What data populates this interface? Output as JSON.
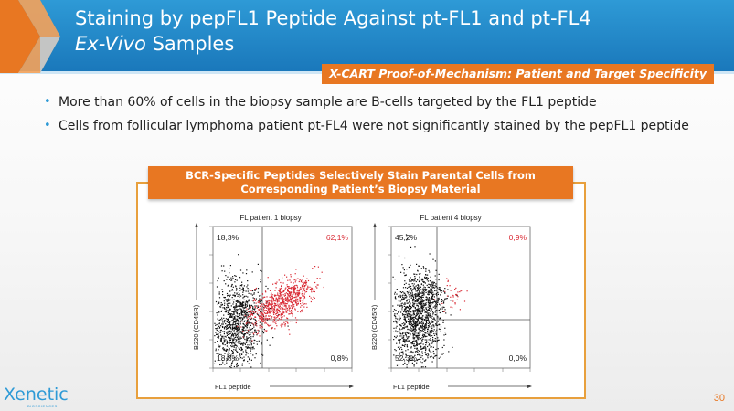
{
  "header": {
    "title_line1": "Staining by pepFL1 Peptide Against pt-FL1 and pt-FL4",
    "title_line2_italic": "Ex-Vivo",
    "title_line2_rest": " Samples",
    "subtitle": "X-CART Proof-of-Mechanism: Patient and Target Specificity"
  },
  "bullets": [
    "More than 60% of cells in the biopsy sample are B-cells targeted by the FL1 peptide",
    "Cells from follicular lymphoma patient pt-FL4 were not significantly stained by the pepFL1 peptide"
  ],
  "figure": {
    "panel_title_line1": "BCR-Specific Peptides Selectively Stain Parental Cells from",
    "panel_title_line2": "Corresponding Patient’s Biopsy Material"
  },
  "chart_data": [
    {
      "type": "scatter",
      "title": "FL patient 1 biopsy",
      "xlabel": "FL1 peptide",
      "ylabel": "B220 (CD45R)",
      "quadrants": {
        "top_left": "18,3%",
        "top_right": "62,1%",
        "bottom_left": "18,8%",
        "bottom_right": "0,8%"
      },
      "highlight_color": "#d92a34"
    },
    {
      "type": "scatter",
      "title": "FL patient 4 biopsy",
      "xlabel": "FL1 peptide",
      "ylabel": "B220 (CD45R)",
      "quadrants": {
        "top_left": "45,2%",
        "top_right": "0,9%",
        "bottom_left": "52,3%",
        "bottom_right": "0,0%"
      },
      "highlight_color": "#d92a34"
    }
  ],
  "footer": {
    "logo": "Xenetic",
    "logo_sub": "BIOSCIENCES",
    "page_number": "30"
  }
}
